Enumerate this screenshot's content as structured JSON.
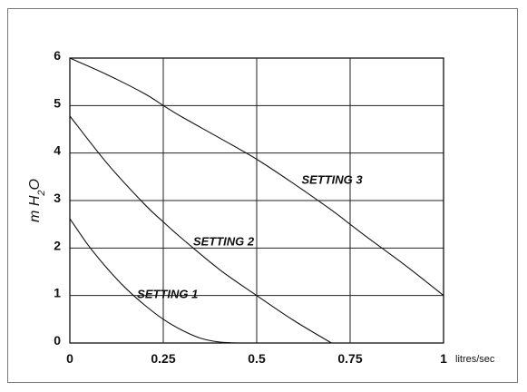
{
  "chart_data": {
    "type": "line",
    "ylabel": "m H2O",
    "xunit": "litres/sec",
    "xticks": [
      "0",
      "0.25",
      "0.5",
      "0.75",
      "1"
    ],
    "yticks": [
      "0",
      "1",
      "2",
      "3",
      "4",
      "5",
      "6"
    ],
    "xlim": [
      0,
      1
    ],
    "ylim": [
      0,
      6
    ],
    "grid": true,
    "series": [
      {
        "name": "SETTING 1",
        "x": [
          0,
          0.05,
          0.1,
          0.15,
          0.2,
          0.25,
          0.3,
          0.35,
          0.4,
          0.45
        ],
        "y": [
          2.62,
          2.05,
          1.57,
          1.15,
          0.8,
          0.5,
          0.27,
          0.1,
          0.02,
          0
        ]
      },
      {
        "name": "SETTING 2",
        "x": [
          0,
          0.1,
          0.2,
          0.25,
          0.3,
          0.4,
          0.5,
          0.6,
          0.7
        ],
        "y": [
          4.78,
          3.78,
          2.92,
          2.55,
          2.2,
          1.55,
          1.0,
          0.47,
          0
        ]
      },
      {
        "name": "SETTING 3",
        "x": [
          0,
          0.1,
          0.2,
          0.25,
          0.3,
          0.4,
          0.5,
          0.6,
          0.7,
          0.75,
          0.8,
          0.9,
          1.0
        ],
        "y": [
          6.0,
          5.65,
          5.25,
          5.0,
          4.76,
          4.32,
          3.87,
          3.35,
          2.8,
          2.5,
          2.2,
          1.62,
          1.0
        ]
      }
    ]
  }
}
